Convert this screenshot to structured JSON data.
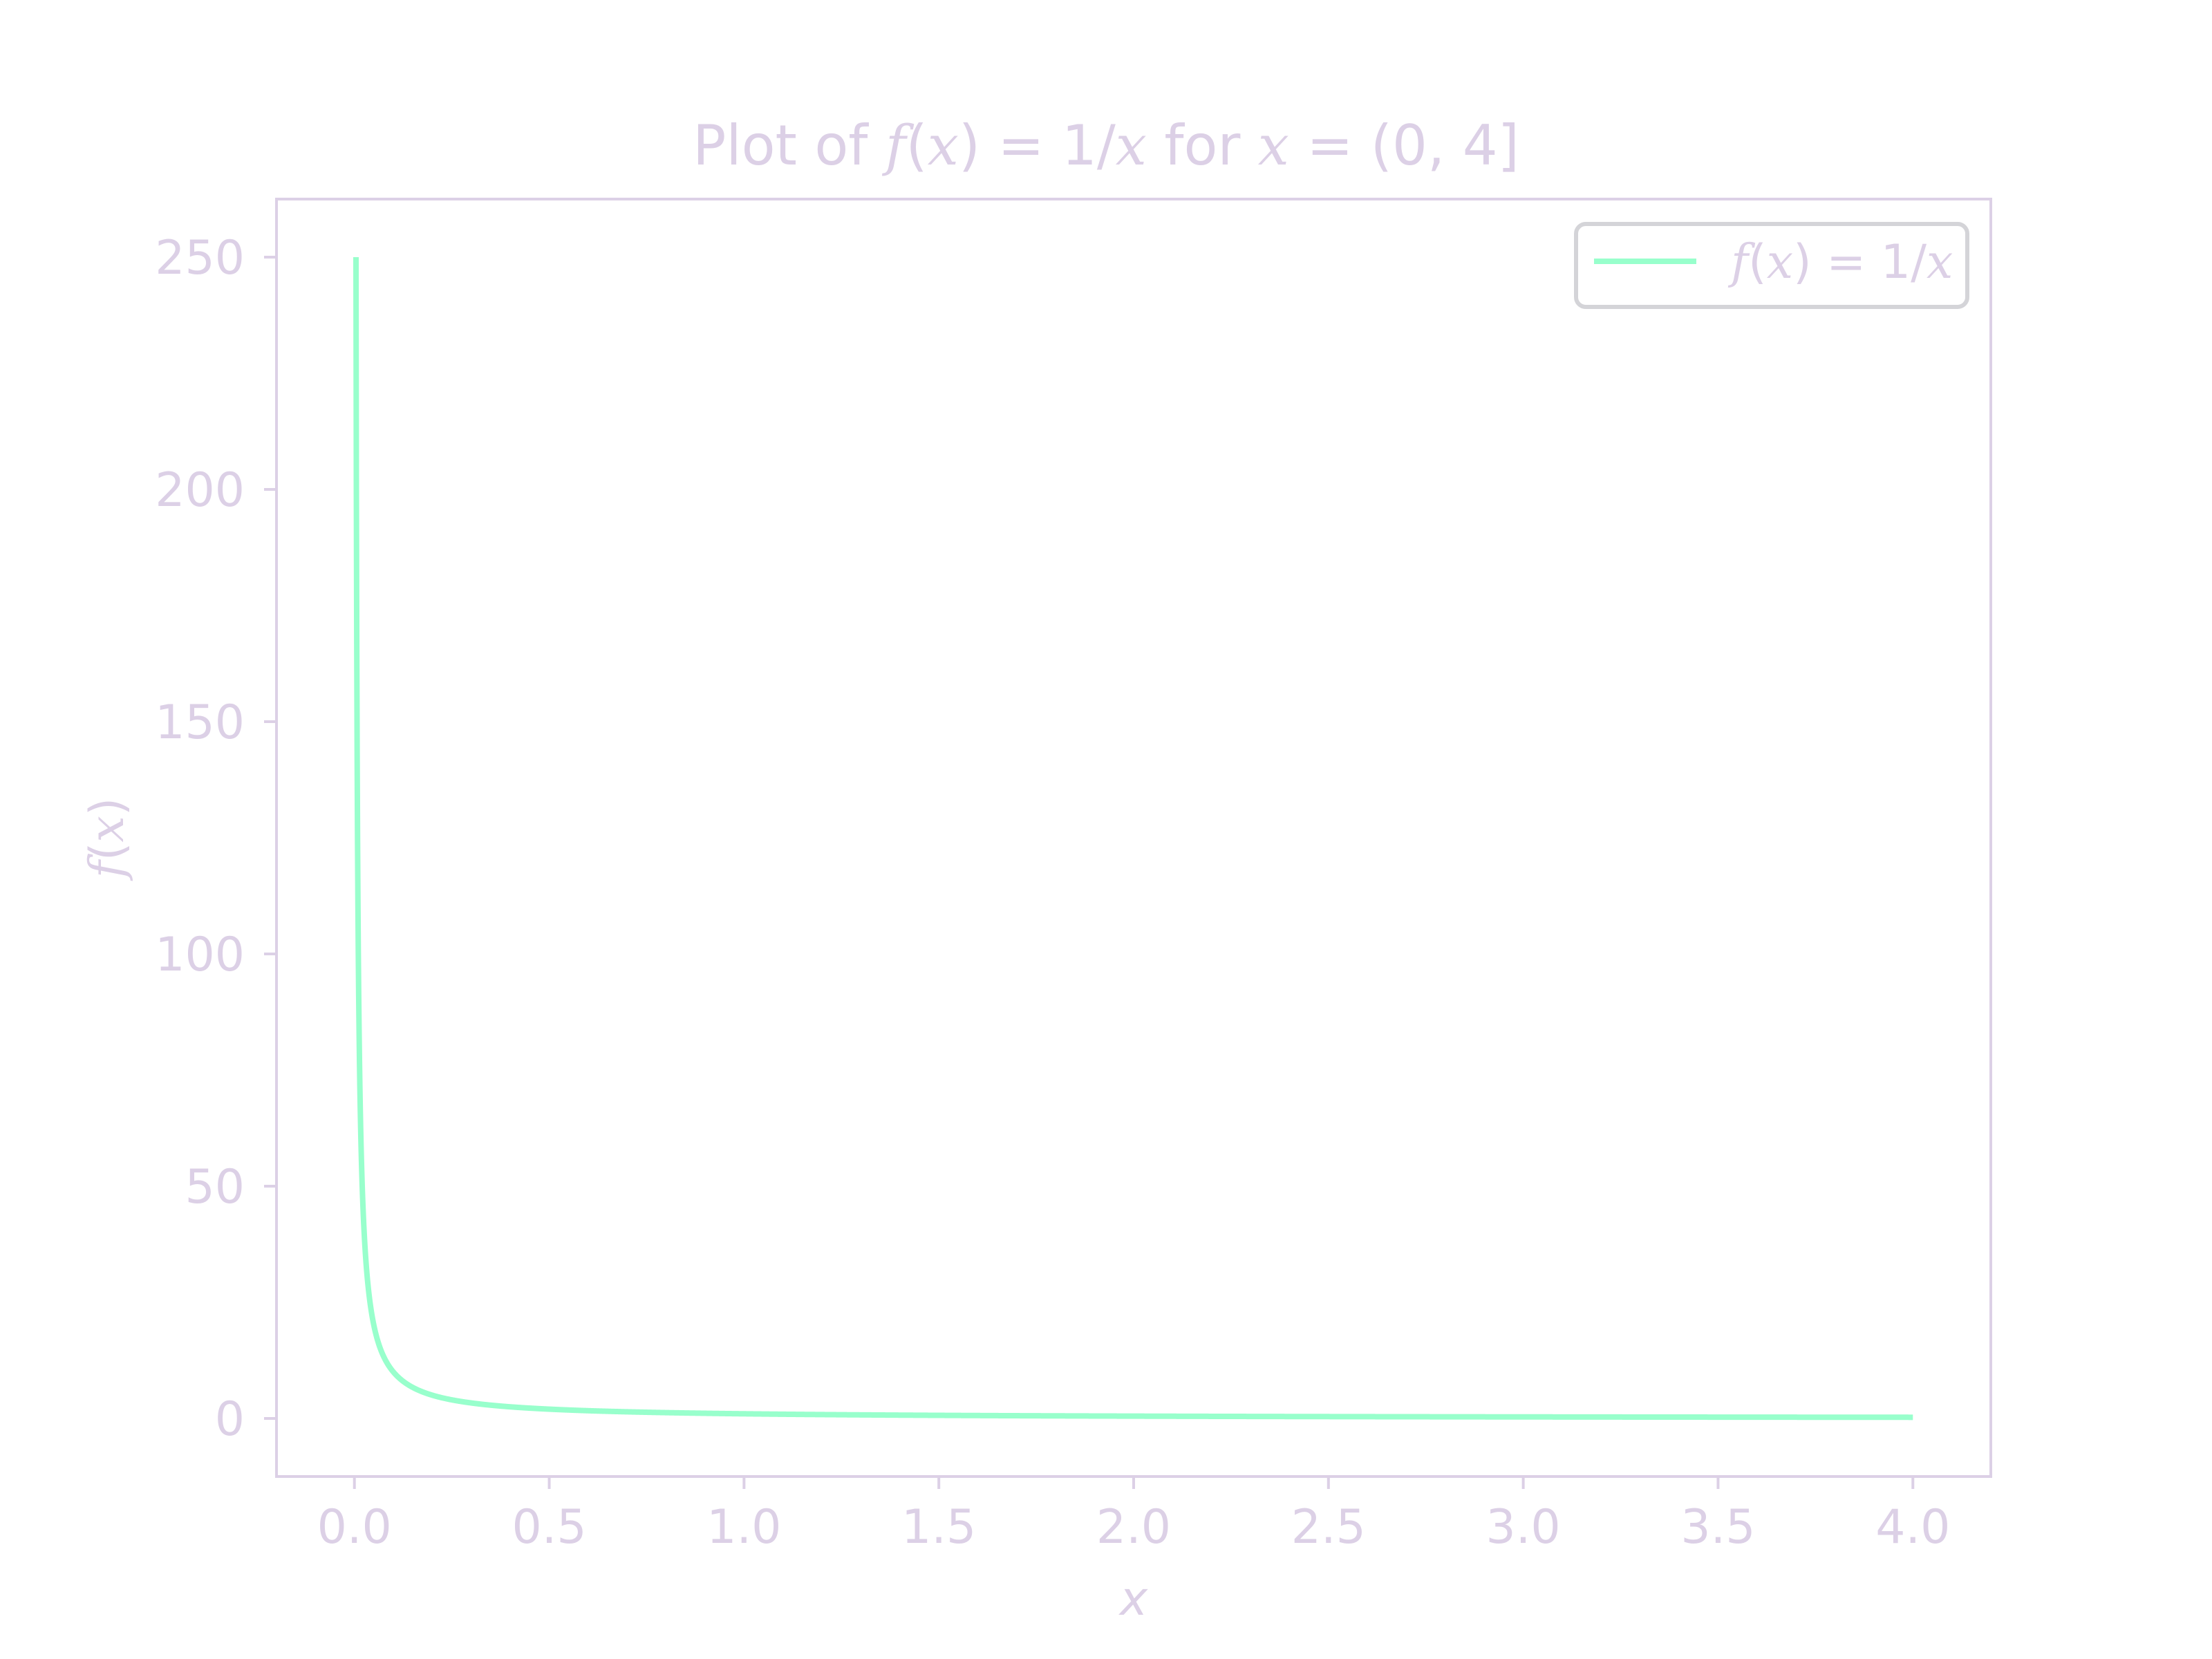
{
  "chart_data": {
    "type": "line",
    "title": "Plot of f(x) = 1/x for x = (0, 4]",
    "title_parts": {
      "pre": "Plot of ",
      "fx": "f",
      "open1": "(",
      "x1": "x",
      "close1": ")",
      "eq1": " = 1/",
      "x2": "x",
      "mid": " for ",
      "x3": "x",
      "eq2": " = (0, 4]"
    },
    "xlabel": "x",
    "ylabel": "f(x)",
    "ylabel_parts": {
      "f": "f",
      "open": "(",
      "x": "x",
      "close": ")"
    },
    "xlim": [
      -0.2,
      4.2
    ],
    "ylim": [
      -12.5,
      262.5
    ],
    "x_ticks": [
      0.0,
      0.5,
      1.0,
      1.5,
      2.0,
      2.5,
      3.0,
      3.5,
      4.0
    ],
    "x_tick_labels": [
      "0.0",
      "0.5",
      "1.0",
      "1.5",
      "2.0",
      "2.5",
      "3.0",
      "3.5",
      "4.0"
    ],
    "y_ticks": [
      0,
      50,
      100,
      150,
      200,
      250
    ],
    "y_tick_labels": [
      "0",
      "50",
      "100",
      "150",
      "200",
      "250"
    ],
    "grid": false,
    "legend_position": "top-right",
    "legend_label": "f(x) = 1/x",
    "legend_parts": {
      "f": "f",
      "open": "(",
      "x1": "x",
      "close": ")",
      "eq": " = 1/",
      "x2": "x"
    },
    "series": [
      {
        "name": "f(x) = 1/x",
        "function": "1/x",
        "x_range": [
          0.004,
          4.0
        ],
        "color": "#98ffcc",
        "x": [
          0.004,
          0.005,
          0.006,
          0.008,
          0.01,
          0.015,
          0.02,
          0.03,
          0.04,
          0.05,
          0.075,
          0.1,
          0.15,
          0.2,
          0.3,
          0.5,
          0.75,
          1.0,
          1.5,
          2.0,
          2.5,
          3.0,
          3.5,
          4.0
        ],
        "y": [
          250.0,
          200.0,
          166.7,
          125.0,
          100.0,
          66.7,
          50.0,
          33.3,
          25.0,
          20.0,
          13.3,
          10.0,
          6.67,
          5.0,
          3.33,
          2.0,
          1.33,
          1.0,
          0.667,
          0.5,
          0.4,
          0.333,
          0.286,
          0.25
        ]
      }
    ]
  },
  "colors": {
    "axis": "#dcd0e6",
    "text": "#dcd0e6",
    "line": "#98ffcc",
    "legend_border": "#d4d4d8"
  }
}
